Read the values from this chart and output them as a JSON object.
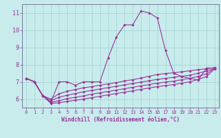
{
  "title": "",
  "xlabel": "Windchill (Refroidissement éolien,°C)",
  "ylabel": "",
  "background_color": "#c8ecec",
  "grid_color": "#aad4d4",
  "line_color": "#993399",
  "spine_color": "#666688",
  "xlim": [
    -0.5,
    23.5
  ],
  "ylim": [
    5.5,
    11.5
  ],
  "xticks": [
    0,
    1,
    2,
    3,
    4,
    5,
    6,
    7,
    8,
    9,
    10,
    11,
    12,
    13,
    14,
    15,
    16,
    17,
    18,
    19,
    20,
    21,
    22,
    23
  ],
  "yticks": [
    6,
    7,
    8,
    9,
    10,
    11
  ],
  "x": [
    0,
    1,
    2,
    3,
    4,
    5,
    6,
    7,
    8,
    9,
    10,
    11,
    12,
    13,
    14,
    15,
    16,
    17,
    18,
    19,
    20,
    21,
    22,
    23
  ],
  "lines": [
    [
      7.2,
      7.0,
      6.2,
      5.8,
      7.0,
      7.0,
      6.8,
      7.0,
      7.0,
      7.0,
      8.4,
      9.6,
      10.3,
      10.3,
      11.1,
      11.0,
      10.7,
      8.8,
      7.5,
      7.3,
      7.2,
      7.1,
      7.8,
      7.8
    ],
    [
      7.2,
      7.0,
      6.2,
      6.0,
      6.3,
      6.45,
      6.55,
      6.65,
      6.72,
      6.8,
      6.88,
      6.95,
      7.05,
      7.12,
      7.22,
      7.32,
      7.42,
      7.48,
      7.52,
      7.58,
      7.64,
      7.7,
      7.76,
      7.82
    ],
    [
      7.2,
      7.0,
      6.2,
      5.9,
      6.1,
      6.22,
      6.32,
      6.42,
      6.5,
      6.58,
      6.66,
      6.74,
      6.82,
      6.9,
      6.98,
      7.06,
      7.14,
      7.2,
      7.26,
      7.32,
      7.38,
      7.5,
      7.62,
      7.78
    ],
    [
      7.2,
      7.0,
      6.2,
      5.8,
      5.9,
      6.02,
      6.1,
      6.18,
      6.28,
      6.36,
      6.44,
      6.52,
      6.6,
      6.68,
      6.76,
      6.84,
      6.92,
      6.98,
      7.04,
      7.12,
      7.2,
      7.32,
      7.46,
      7.78
    ],
    [
      7.2,
      7.0,
      6.2,
      5.75,
      5.78,
      5.86,
      5.93,
      6.0,
      6.08,
      6.16,
      6.24,
      6.32,
      6.4,
      6.48,
      6.56,
      6.64,
      6.72,
      6.78,
      6.84,
      6.92,
      7.0,
      7.14,
      7.3,
      7.76
    ]
  ]
}
